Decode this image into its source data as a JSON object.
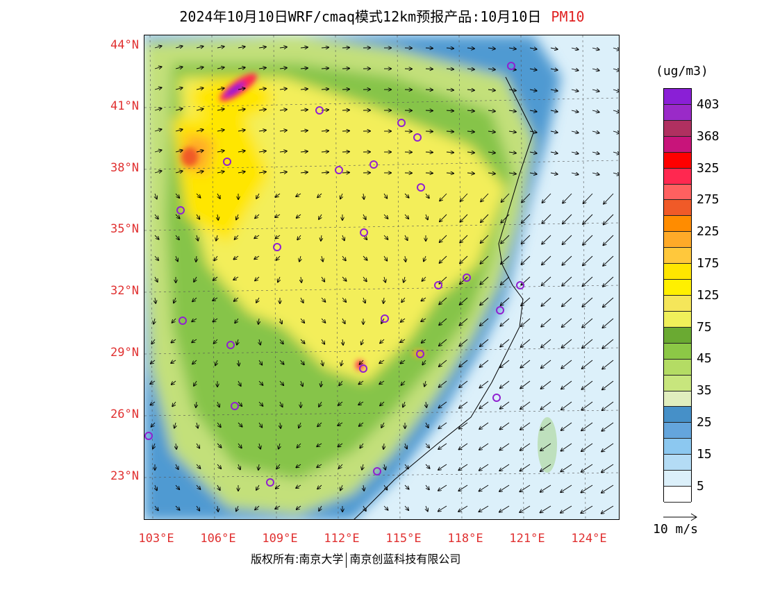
{
  "title": {
    "text": "2024年10月10日WRF/cmaq模式12km预报产品:10月10日",
    "variable": "PM10"
  },
  "map": {
    "region": "East/Central China",
    "lat_labels": [
      "44°N",
      "41°N",
      "38°N",
      "35°N",
      "32°N",
      "29°N",
      "26°N",
      "23°N"
    ],
    "lon_labels": [
      "103°E",
      "106°E",
      "109°E",
      "112°E",
      "115°E",
      "118°E",
      "121°E",
      "124°E"
    ],
    "city_marker_color": "#9020d0"
  },
  "legend": {
    "units": "(ug/m3)",
    "labels": [
      "403",
      "368",
      "325",
      "275",
      "225",
      "175",
      "125",
      "75",
      "45",
      "35",
      "25",
      "15",
      "5"
    ],
    "colors": [
      "#8a1fd6",
      "#9a2ac8",
      "#b03060",
      "#c8147a",
      "#ff0000",
      "#ff2850",
      "#ff6060",
      "#f05a28",
      "#ff8c00",
      "#ffaa28",
      "#ffc83c",
      "#ffe600",
      "#fff000",
      "#f5e65a",
      "#f0f05a",
      "#6aaa32",
      "#8cc846",
      "#b4dc64",
      "#c8e67d",
      "#e1eebe",
      "#4690c8",
      "#64a5dc",
      "#8cc8f0",
      "#b4dcf5",
      "#dcf0fa",
      "#ffffff"
    ]
  },
  "wind": {
    "reference_label": "10 m/s"
  },
  "footer": {
    "left": "版权所有:南京大学",
    "right": "南京创蓝科技有限公司"
  }
}
